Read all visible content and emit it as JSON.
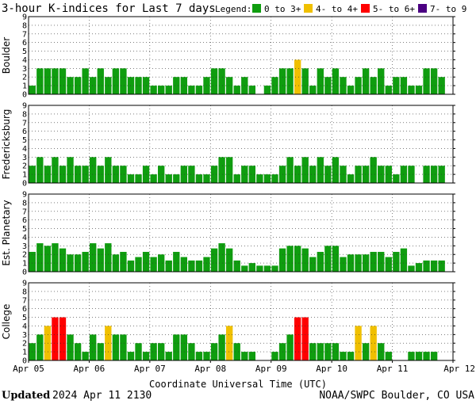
{
  "title": "3-hour K-indices for Last 7 days",
  "legend": {
    "label": "Legend:",
    "items": [
      {
        "label": "0 to 3+",
        "color": "#0f9d0f"
      },
      {
        "label": "4- to 4+",
        "color": "#f0c000"
      },
      {
        "label": "5- to 6+",
        "color": "#ff0000"
      },
      {
        "label": "7- to 9",
        "color": "#4b0082"
      }
    ]
  },
  "footer": {
    "updated_label": "Updated",
    "updated_value": "2024 Apr 11 2130",
    "source": "NOAA/SWPC Boulder, CO USA"
  },
  "chart_data": [
    {
      "type": "bar",
      "ylabel": "Boulder",
      "ylim": [
        0,
        9
      ],
      "yticks": [
        "0",
        "1",
        "2",
        "3",
        "4",
        "5",
        "6",
        "7",
        "8",
        "9"
      ],
      "xlabel": "Coordinate Universal Time (UTC)",
      "xticks": [
        "Apr 05",
        "Apr 06",
        "Apr 07",
        "Apr 08",
        "Apr 09",
        "Apr 10",
        "Apr 11",
        "Apr 12"
      ],
      "grid": true,
      "values": [
        1,
        3,
        3,
        3,
        3,
        2,
        2,
        3,
        2,
        3,
        2,
        3,
        3,
        2,
        2,
        2,
        1,
        1,
        1,
        2,
        2,
        1,
        1,
        2,
        3,
        3,
        2,
        1,
        2,
        1,
        0,
        1,
        2,
        3,
        3,
        4,
        3,
        1,
        3,
        2,
        3,
        2,
        1,
        2,
        3,
        2,
        3,
        1,
        2,
        2,
        1,
        1,
        3,
        3,
        2,
        0
      ]
    },
    {
      "type": "bar",
      "ylabel": "Fredericksburg",
      "ylim": [
        0,
        9
      ],
      "yticks": [
        "0",
        "1",
        "2",
        "3",
        "4",
        "5",
        "6",
        "7",
        "8",
        "9"
      ],
      "grid": true,
      "values": [
        2,
        3,
        2,
        3,
        2,
        3,
        2,
        2,
        3,
        2,
        3,
        2,
        2,
        1,
        1,
        2,
        1,
        2,
        1,
        1,
        2,
        2,
        1,
        1,
        2,
        3,
        3,
        1,
        2,
        2,
        1,
        1,
        1,
        2,
        3,
        2,
        3,
        2,
        3,
        2,
        3,
        2,
        1,
        2,
        2,
        3,
        2,
        2,
        1,
        2,
        2,
        0,
        2,
        2,
        2,
        0
      ]
    },
    {
      "type": "bar",
      "ylabel": "Est. Planetary",
      "ylim": [
        0,
        9
      ],
      "yticks": [
        "0",
        "1",
        "2",
        "3",
        "4",
        "5",
        "6",
        "7",
        "8",
        "9"
      ],
      "grid": true,
      "values": [
        2.3,
        3.3,
        3,
        3.3,
        2.7,
        2,
        2,
        2.3,
        3.3,
        2.7,
        3.3,
        2,
        2.3,
        1.3,
        1.7,
        2.3,
        1.7,
        2,
        1.3,
        2.3,
        1.7,
        1.3,
        1.3,
        1.7,
        2.7,
        3.3,
        2.7,
        1.3,
        0.7,
        1,
        0.7,
        0.7,
        0.7,
        2.7,
        3,
        3,
        2.7,
        1.7,
        2.3,
        3,
        3,
        1.7,
        2,
        2,
        2,
        2.3,
        2.3,
        1.7,
        2.3,
        2.7,
        0.7,
        1,
        1.3,
        1.3,
        1.3,
        0
      ]
    },
    {
      "type": "bar",
      "ylabel": "College",
      "ylim": [
        0,
        9
      ],
      "yticks": [
        "0",
        "1",
        "2",
        "3",
        "4",
        "5",
        "6",
        "7",
        "8",
        "9"
      ],
      "grid": true,
      "values": [
        2,
        3,
        4,
        5,
        5,
        3,
        2,
        1,
        3,
        2,
        4,
        3,
        3,
        1,
        2,
        1,
        2,
        2,
        1,
        3,
        3,
        2,
        1,
        1,
        2,
        3,
        4,
        2,
        1,
        1,
        0,
        0,
        1,
        2,
        3,
        5,
        5,
        2,
        2,
        2,
        2,
        1,
        1,
        4,
        2,
        4,
        2,
        1,
        0,
        0,
        1,
        1,
        1,
        1,
        0,
        0
      ]
    }
  ]
}
